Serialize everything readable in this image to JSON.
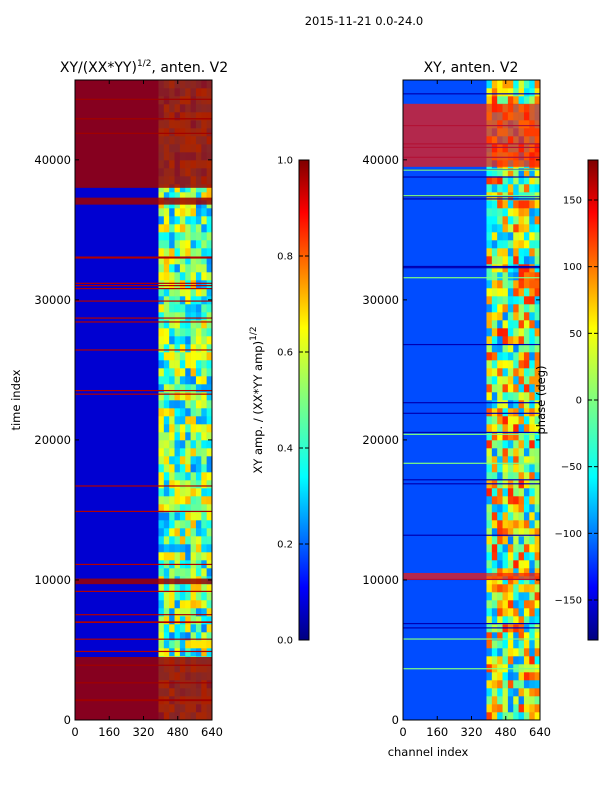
{
  "figure": {
    "suptitle": "2015-11-21 0.0-24.0"
  },
  "colors": {
    "jet": [
      "#00007f",
      "#0000ff",
      "#007fff",
      "#00ffff",
      "#7fff7f",
      "#ffff00",
      "#ff7f00",
      "#ff0000",
      "#7f0000"
    ]
  },
  "chart_data": [
    {
      "type": "heatmap",
      "title_main": "XY/(XX*YY)",
      "title_sup": "1/2",
      "title_tail": ", anten. V2",
      "xlabel": "",
      "ylabel": "time index",
      "xlim": [
        0,
        640
      ],
      "ylim": [
        0,
        45700
      ],
      "xticks": [
        "0",
        "160",
        "320",
        "480",
        "640"
      ],
      "yticks": [
        "0",
        "10000",
        "20000",
        "30000",
        "40000"
      ],
      "base_level": 0.08,
      "active_channels": [
        390,
        640
      ],
      "flagged_bands": [
        [
          0,
          4500
        ],
        [
          9700,
          10100
        ],
        [
          36800,
          37300
        ],
        [
          38000,
          45700
        ]
      ],
      "colorbar": {
        "range": [
          0.0,
          1.0
        ],
        "ticks": [
          "0.0",
          "0.2",
          "0.4",
          "0.6",
          "0.8",
          "1.0"
        ],
        "label_main": "XY amp. / (XX*YY amp)",
        "label_sup": "1/2"
      }
    },
    {
      "type": "heatmap",
      "title_main": "XY, anten. V2",
      "xlabel": "channel index",
      "ylabel": "",
      "xlim": [
        0,
        640
      ],
      "ylim": [
        0,
        45700
      ],
      "xticks": [
        "0",
        "160",
        "320",
        "480",
        "640"
      ],
      "yticks": [
        "0",
        "10000",
        "20000",
        "30000",
        "40000"
      ],
      "base_level": 0.2,
      "active_channels": [
        390,
        640
      ],
      "flagged_bands": [
        [
          10000,
          10500
        ],
        [
          39500,
          44000
        ]
      ],
      "colorbar": {
        "range": [
          -180,
          180
        ],
        "ticks": [
          "−150",
          "−100",
          "−50",
          "0",
          "50",
          "100",
          "150"
        ],
        "tick_values": [
          -150,
          -100,
          -50,
          0,
          50,
          100,
          150
        ],
        "label": "phase (deg)"
      }
    }
  ]
}
